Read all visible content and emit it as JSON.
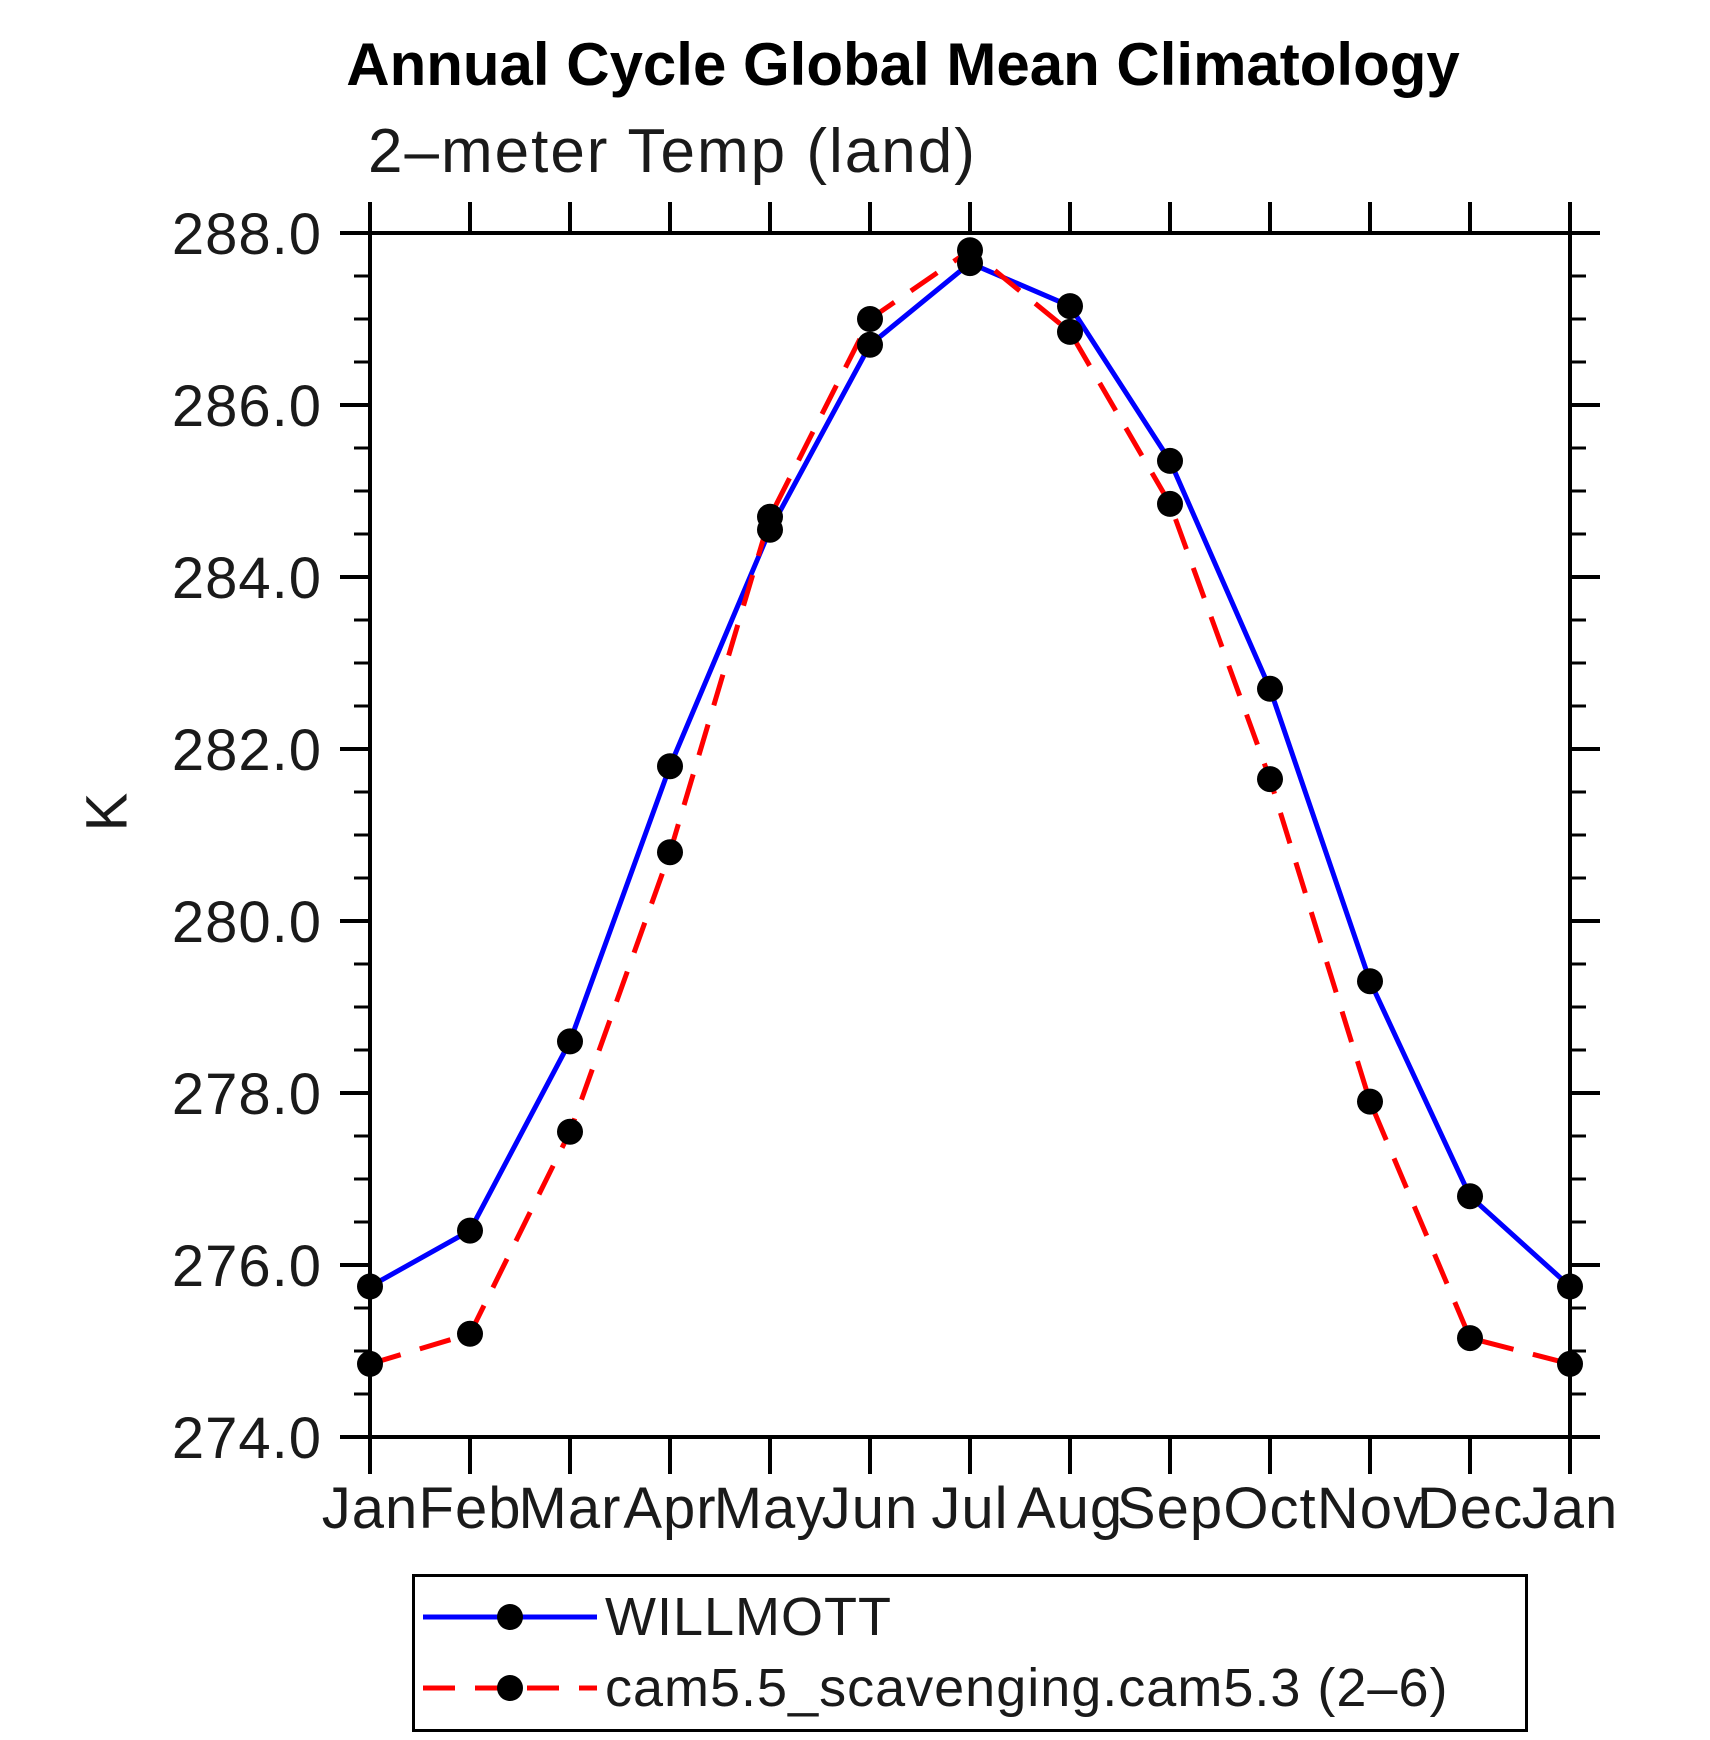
{
  "chart_data": {
    "type": "line",
    "title": "Annual Cycle Global Mean Climatology",
    "subtitle": "2–meter Temp (land)",
    "ylabel": "K",
    "x": [
      "Jan",
      "Feb",
      "Mar",
      "Apr",
      "May",
      "Jun",
      "Jul",
      "Aug",
      "Sep",
      "Oct",
      "Nov",
      "Dec",
      "Jan"
    ],
    "ylim": [
      274.0,
      288.0
    ],
    "ytick_major_interval": 2.0,
    "ytick_minor_interval": 0.5,
    "grid": "off",
    "legend_position": "bottom",
    "marker": {
      "shape": "circle",
      "color": "#000000"
    },
    "series": [
      {
        "name": "WILLMOTT",
        "color": "#0000ff",
        "style": "solid",
        "values": [
          275.75,
          276.4,
          278.6,
          281.8,
          284.55,
          286.7,
          287.65,
          287.15,
          285.35,
          282.7,
          279.3,
          276.8,
          275.75
        ]
      },
      {
        "name": "cam5.5_scavenging.cam5.3 (2–6)",
        "color": "#ff0000",
        "style": "dashed",
        "values": [
          274.85,
          275.2,
          277.55,
          280.8,
          284.7,
          287.0,
          287.8,
          286.85,
          284.85,
          281.65,
          277.9,
          275.15,
          274.85
        ]
      }
    ]
  }
}
